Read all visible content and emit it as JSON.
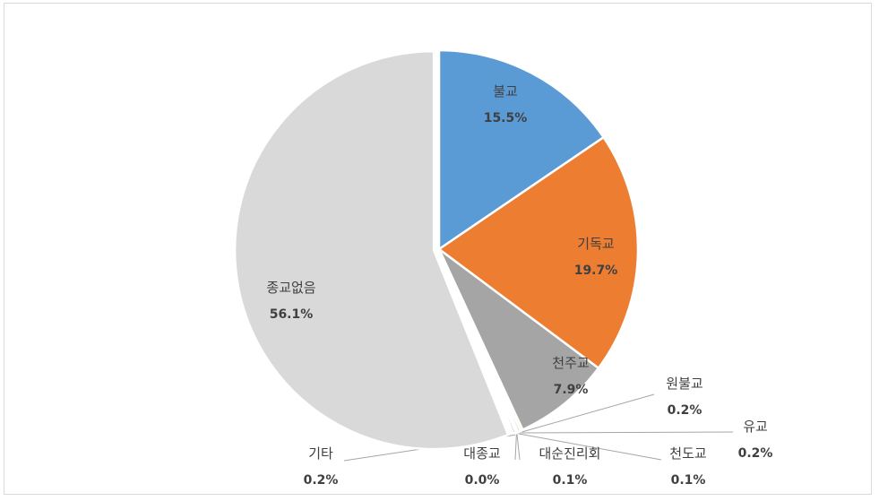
{
  "chart_data": {
    "type": "pie",
    "title": "",
    "slices": [
      {
        "label": "불교",
        "value": 15.5,
        "display": "15.5%",
        "color": "#5b9bd5"
      },
      {
        "label": "기독교",
        "value": 19.7,
        "display": "19.7%",
        "color": "#ed7d31"
      },
      {
        "label": "천주교",
        "value": 7.9,
        "display": "7.9%",
        "color": "#a5a5a5"
      },
      {
        "label": "원불교",
        "value": 0.2,
        "display": "0.2%",
        "color": "#ffc000"
      },
      {
        "label": "유교",
        "value": 0.2,
        "display": "0.2%",
        "color": "#4472c4"
      },
      {
        "label": "천도교",
        "value": 0.1,
        "display": "0.1%",
        "color": "#70ad47"
      },
      {
        "label": "대순진리회",
        "value": 0.1,
        "display": "0.1%",
        "color": "#264478"
      },
      {
        "label": "대종교",
        "value": 0.0,
        "display": "0.0%",
        "color": "#9e480e"
      },
      {
        "label": "기타",
        "value": 0.2,
        "display": "0.2%",
        "color": "#636363"
      },
      {
        "label": "종교없음",
        "value": 56.1,
        "display": "56.1%",
        "color": "#d9d9d9"
      }
    ]
  }
}
